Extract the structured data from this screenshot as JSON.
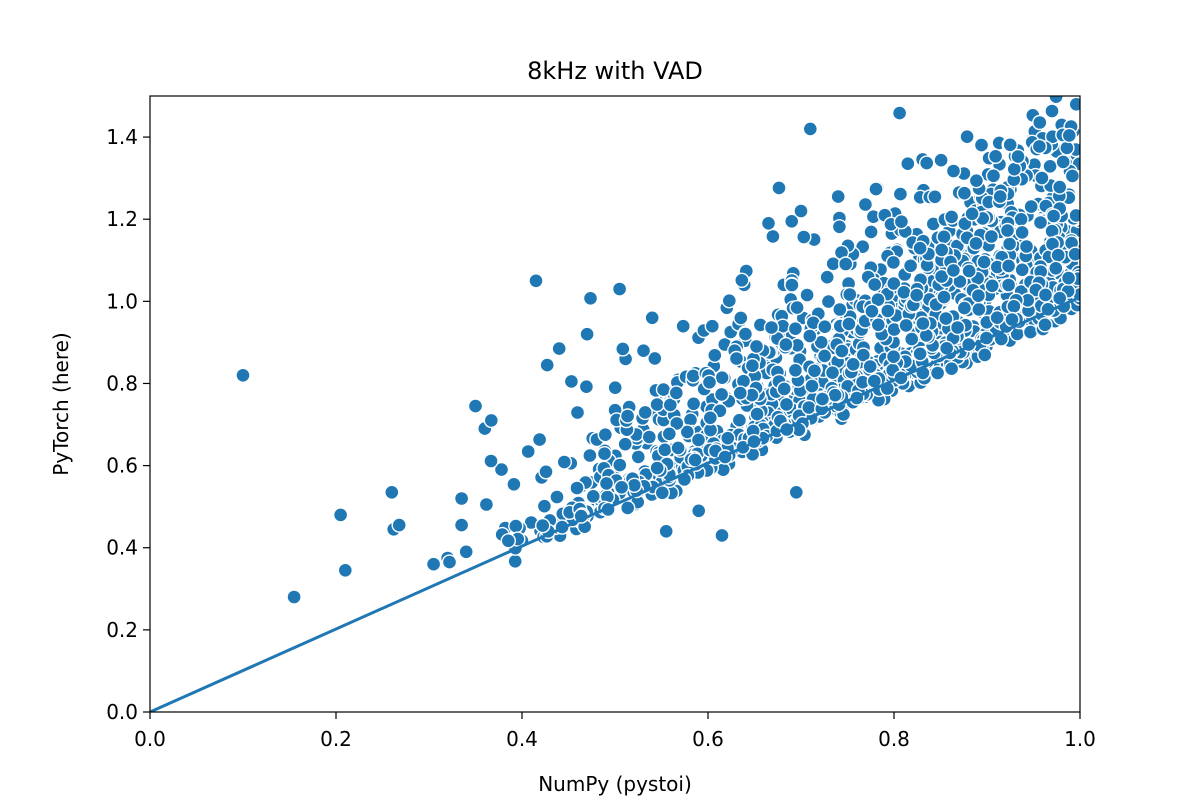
{
  "chart_data": {
    "type": "scatter",
    "title": "8kHz with VAD",
    "xlabel": "NumPy (pystoi)",
    "ylabel": "PyTorch (here)",
    "xlim": [
      0.0,
      1.0
    ],
    "ylim": [
      0.0,
      1.5
    ],
    "xticks": [
      "0.0",
      "0.2",
      "0.4",
      "0.6",
      "0.8",
      "1.0"
    ],
    "yticks": [
      "0.0",
      "0.2",
      "0.4",
      "0.6",
      "0.8",
      "1.0",
      "1.2",
      "1.4"
    ],
    "xtick_values": [
      0.0,
      0.2,
      0.4,
      0.6,
      0.8,
      1.0
    ],
    "ytick_values": [
      0.0,
      0.2,
      0.4,
      0.6,
      0.8,
      1.0,
      1.2,
      1.4
    ],
    "marker_color": "#1f77b4",
    "marker_edge_color": "#ffffff",
    "reference_line": {
      "label": "",
      "x": [
        0.0,
        1.0
      ],
      "y": [
        0.0,
        1.01
      ]
    },
    "outliers": [
      [
        0.1,
        0.82
      ],
      [
        0.155,
        0.28
      ],
      [
        0.21,
        0.345
      ],
      [
        0.205,
        0.48
      ],
      [
        0.26,
        0.535
      ],
      [
        0.262,
        0.445
      ],
      [
        0.268,
        0.455
      ],
      [
        0.305,
        0.36
      ],
      [
        0.32,
        0.375
      ],
      [
        0.322,
        0.365
      ],
      [
        0.335,
        0.52
      ],
      [
        0.335,
        0.455
      ],
      [
        0.34,
        0.39
      ],
      [
        0.35,
        0.745
      ],
      [
        0.36,
        0.69
      ],
      [
        0.367,
        0.71
      ],
      [
        0.415,
        1.05
      ],
      [
        0.44,
        0.885
      ],
      [
        0.47,
        0.92
      ],
      [
        0.505,
        1.03
      ],
      [
        0.54,
        0.96
      ],
      [
        0.555,
        0.44
      ],
      [
        0.59,
        0.49
      ],
      [
        0.615,
        0.43
      ],
      [
        0.695,
        0.535
      ],
      [
        0.71,
        1.42
      ],
      [
        0.665,
        1.19
      ],
      [
        0.69,
        1.195
      ],
      [
        0.7,
        1.22
      ],
      [
        0.74,
        1.255
      ]
    ],
    "cloud": {
      "count": 1500,
      "x_range": [
        0.35,
        1.0
      ],
      "trend": {
        "slope": 1.25,
        "intercept": -0.08
      },
      "y_spread": 0.28
    }
  }
}
